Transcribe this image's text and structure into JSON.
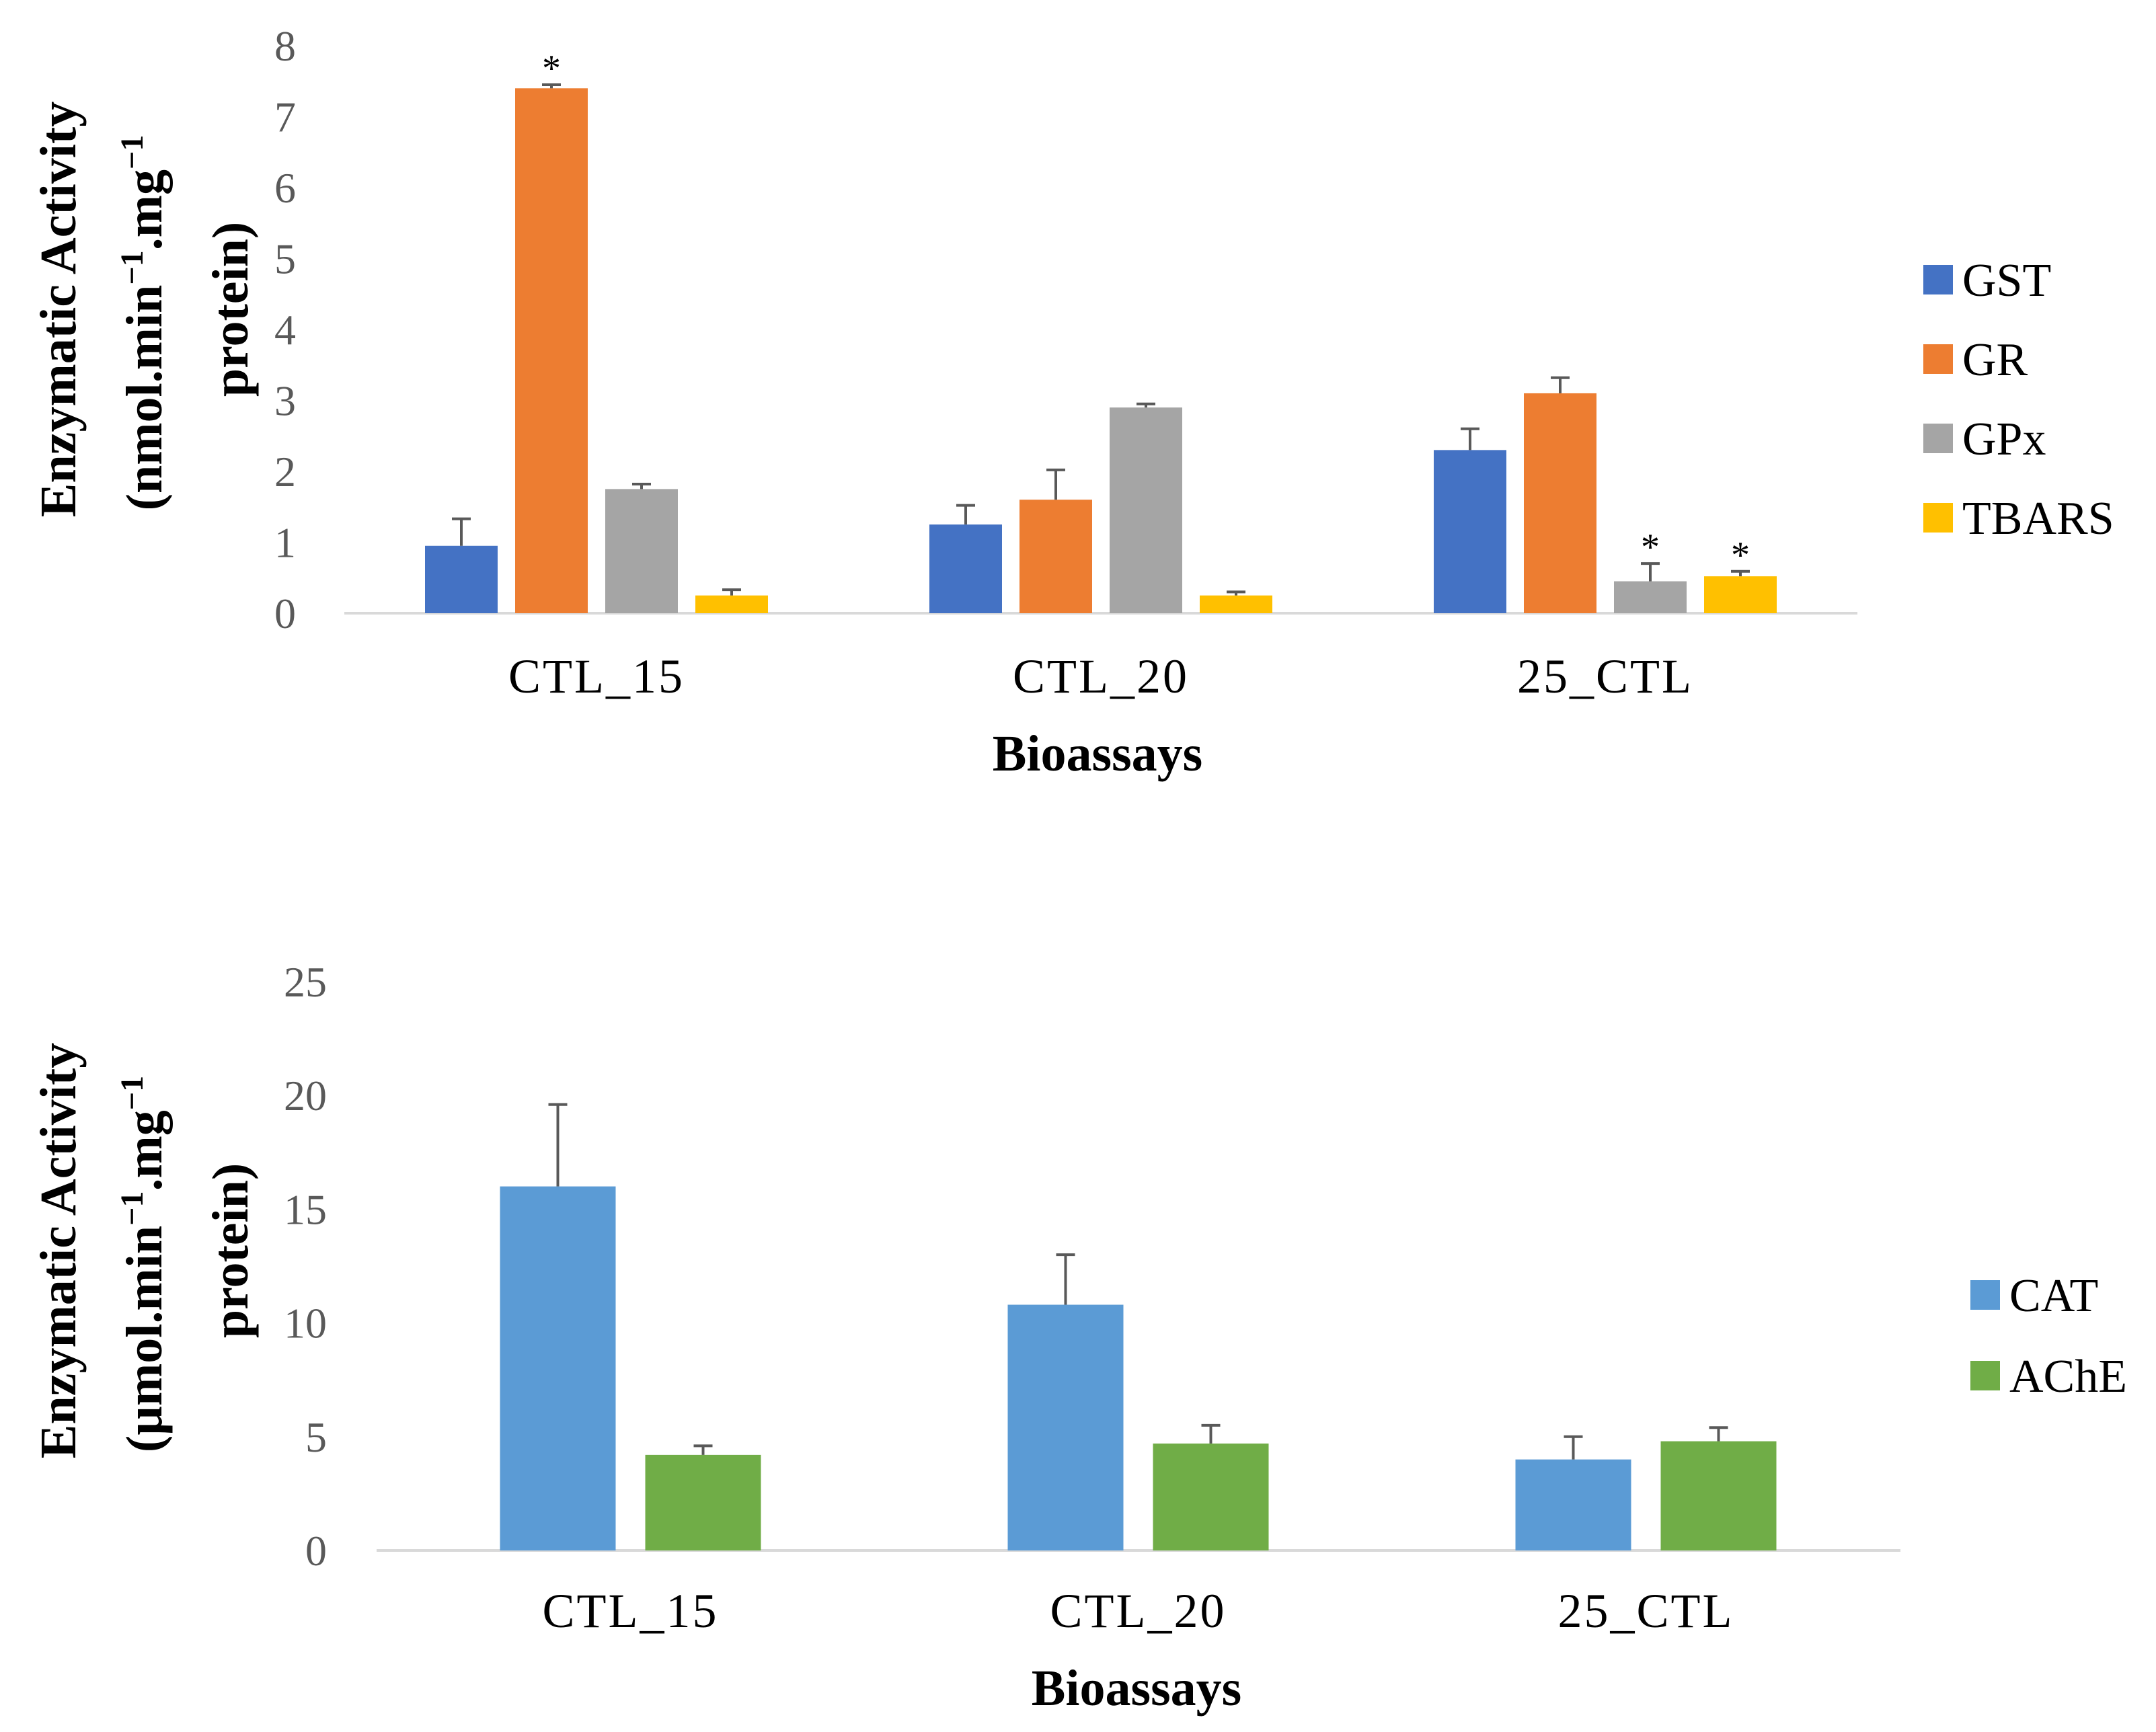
{
  "chart_data": [
    {
      "type": "bar",
      "categories": [
        "CTL_15",
        "CTL_20",
        "25_CTL"
      ],
      "xlabel": "Bioassays",
      "ylabel": {
        "line1": "Enzymatic Activity",
        "line2_a": "(nmol.min",
        "line2_sup1": "−1",
        "line2_b": ".mg",
        "line2_sup2": "−1",
        "line3": "protein)"
      },
      "ylim": [
        0,
        8
      ],
      "yticks": [
        "0",
        "1",
        "2",
        "3",
        "4",
        "5",
        "6",
        "7",
        "8"
      ],
      "legend_position": "right",
      "series": [
        {
          "name": "GST",
          "color": "#4472C4",
          "values": [
            0.95,
            1.25,
            2.3
          ],
          "errors": [
            0.38,
            0.27,
            0.3
          ],
          "marks": [
            "",
            "",
            ""
          ]
        },
        {
          "name": "GR",
          "color": "#ED7D31",
          "values": [
            7.4,
            1.6,
            3.1
          ],
          "errors": [
            0.05,
            0.42,
            0.22
          ],
          "marks": [
            "*",
            "",
            ""
          ]
        },
        {
          "name": "GPx",
          "color": "#A5A5A5",
          "values": [
            1.75,
            2.9,
            0.45
          ],
          "errors": [
            0.07,
            0.05,
            0.25
          ],
          "marks": [
            "",
            "",
            "*"
          ]
        },
        {
          "name": "TBARS",
          "color": "#FFC000",
          "values": [
            0.25,
            0.25,
            0.52
          ],
          "errors": [
            0.08,
            0.05,
            0.07
          ],
          "marks": [
            "",
            "",
            "*"
          ]
        }
      ]
    },
    {
      "type": "bar",
      "categories": [
        "CTL_15",
        "CTL_20",
        "25_CTL"
      ],
      "xlabel": "Bioassays",
      "ylabel": {
        "line1": "Enzymatic Activity",
        "line2_a": "(µmol.min",
        "line2_sup1": "−1",
        "line2_b": ".mg",
        "line2_sup2": "−1",
        "line3": "protein)"
      },
      "ylim": [
        0,
        25
      ],
      "yticks": [
        "0",
        "5",
        "10",
        "15",
        "20",
        "25"
      ],
      "legend_position": "right",
      "series": [
        {
          "name": "CAT",
          "color": "#5B9BD5",
          "values": [
            16.0,
            10.8,
            4.0
          ],
          "errors": [
            3.6,
            2.2,
            1.0
          ],
          "marks": [
            "",
            "",
            ""
          ]
        },
        {
          "name": "AChE",
          "color": "#70AD47",
          "values": [
            4.2,
            4.7,
            4.8
          ],
          "errors": [
            0.4,
            0.8,
            0.6
          ],
          "marks": [
            "",
            "",
            ""
          ]
        }
      ]
    }
  ]
}
